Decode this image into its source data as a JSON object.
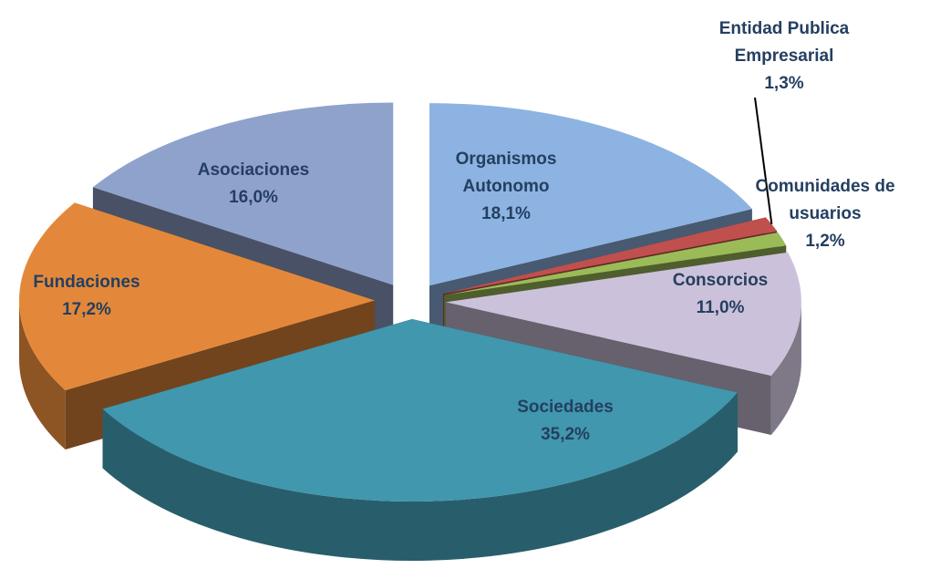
{
  "chart_data": {
    "type": "pie",
    "categories": [
      "Organismos Autonomo",
      "Entidad Publica Empresarial",
      "Comunidades de usuarios",
      "Consorcios",
      "Sociedades",
      "Fundaciones",
      "Asociaciones"
    ],
    "values": [
      18.1,
      1.3,
      1.2,
      11.0,
      35.2,
      17.2,
      16.0
    ],
    "value_labels": [
      "18,1%",
      "1,3%",
      "1,2%",
      "11,0%",
      "35,2%",
      "17,2%",
      "16,0%"
    ],
    "colors": [
      "#8db3e2",
      "#c0504d",
      "#9bbb59",
      "#ccc1da",
      "#4197ad",
      "#e3883a",
      "#8fa2cc"
    ]
  }
}
